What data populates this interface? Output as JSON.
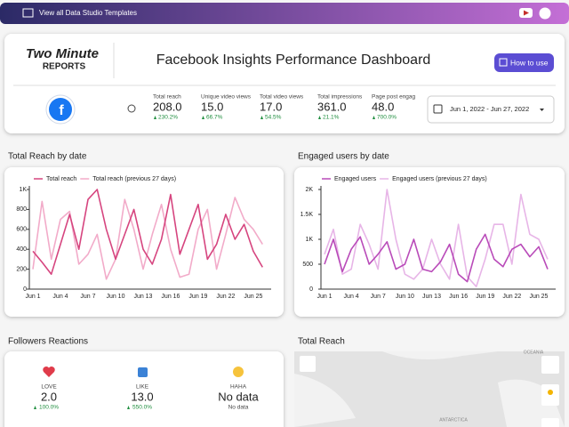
{
  "banner": {
    "link": "View all Data Studio Templates"
  },
  "header": {
    "logo_top": "Two Minute",
    "logo_bottom": "REPORTS",
    "title": "Facebook Insights Performance Dashboard",
    "button": "How to use"
  },
  "kpis": [
    {
      "label": "Total reach",
      "value": "208.0",
      "delta": "230.2%"
    },
    {
      "label": "Unique video views",
      "value": "15.0",
      "delta": "66.7%"
    },
    {
      "label": "Total video views",
      "value": "17.0",
      "delta": "54.5%"
    },
    {
      "label": "Total impressions",
      "value": "361.0",
      "delta": "21.1%"
    },
    {
      "label": "Page post engag",
      "value": "48.0",
      "delta": "700.0%"
    }
  ],
  "date_range": "Jun 1, 2022 - Jun 27, 2022",
  "chart_data": [
    {
      "type": "line",
      "title": "Total Reach by date",
      "categories": [
        "Jun 1",
        null,
        null,
        "Jun 4",
        null,
        null,
        "Jun 7",
        null,
        null,
        "Jun 10",
        null,
        null,
        "Jun 13",
        null,
        null,
        "Jun 16",
        null,
        null,
        "Jun 19",
        null,
        null,
        "Jun 22",
        null,
        null,
        "Jun 25",
        null
      ],
      "series": [
        {
          "name": "Total reach",
          "color": "#d6457f",
          "values": [
            380,
            270,
            150,
            450,
            750,
            400,
            900,
            1000,
            600,
            300,
            550,
            800,
            400,
            250,
            500,
            950,
            350,
            600,
            850,
            300,
            450,
            750,
            500,
            650,
            380,
            220
          ]
        },
        {
          "name": "Total reach (previous 27 days)",
          "color": "#f2abc9",
          "values": [
            200,
            880,
            300,
            700,
            780,
            250,
            350,
            550,
            100,
            300,
            900,
            600,
            200,
            550,
            850,
            400,
            120,
            150,
            600,
            800,
            200,
            550,
            920,
            700,
            600,
            450
          ]
        }
      ],
      "ylim": [
        0,
        1000
      ],
      "yticks": [
        0,
        200,
        400,
        600,
        800,
        {
          "value": 1000,
          "label": "1K"
        }
      ],
      "grid": false
    },
    {
      "type": "line",
      "title": "Engaged users by date",
      "categories": [
        "Jun 1",
        null,
        null,
        "Jun 4",
        null,
        null,
        "Jun 7",
        null,
        null,
        "Jun 10",
        null,
        null,
        "Jun 13",
        null,
        null,
        "Jun 16",
        null,
        null,
        "Jun 19",
        null,
        null,
        "Jun 22",
        null,
        null,
        "Jun 25",
        null
      ],
      "series": [
        {
          "name": "Engaged users",
          "color": "#b94bb9",
          "values": [
            500,
            1000,
            350,
            800,
            1050,
            500,
            700,
            950,
            400,
            500,
            1000,
            400,
            350,
            550,
            900,
            300,
            150,
            800,
            1100,
            600,
            450,
            800,
            900,
            650,
            850,
            400
          ]
        },
        {
          "name": "Engaged users (previous 27 days)",
          "color": "#e7b5e7",
          "values": [
            700,
            1200,
            300,
            400,
            1300,
            900,
            400,
            2000,
            1000,
            300,
            200,
            400,
            1000,
            500,
            200,
            1300,
            250,
            50,
            600,
            1300,
            1300,
            500,
            1900,
            1100,
            1000,
            600
          ]
        }
      ],
      "ylim": [
        0,
        2000
      ],
      "yticks": [
        0,
        500,
        {
          "value": 1000,
          "label": "1K"
        },
        {
          "value": 1500,
          "label": "1.5K"
        },
        {
          "value": 2000,
          "label": "2K"
        }
      ],
      "grid": false
    }
  ],
  "reactions": {
    "title": "Followers Reactions",
    "items": [
      {
        "label": "LOVE",
        "value": "2.0",
        "delta": "100.0%"
      },
      {
        "label": "LIKE",
        "value": "13.0",
        "delta": "550.0%"
      },
      {
        "label": "HAHA",
        "value": "No data",
        "delta": "No data"
      }
    ]
  },
  "map": {
    "title": "Total Reach",
    "labels": [
      "OCEANIA",
      "ANTARCTICA"
    ]
  }
}
